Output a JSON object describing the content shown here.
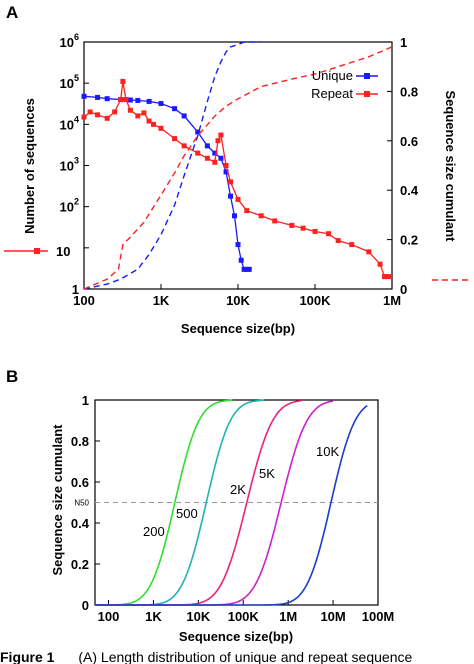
{
  "figure": {
    "caption_prefix": "Figure 1",
    "caption_text": "(A) Length distribution of unique and repeat sequence"
  },
  "chart_data": [
    {
      "panel": "A",
      "type": "line",
      "xlabel": "Sequence size(bp)",
      "ylabel": "Number of sequences",
      "ylabel_right": "Sequence size cumulant",
      "xscale": "log",
      "yscale": "log",
      "xlim": [
        100,
        1000000
      ],
      "ylim": [
        1,
        1000000
      ],
      "ylim_right": [
        0,
        1
      ],
      "x_ticks": [
        {
          "v": 100,
          "label": "100"
        },
        {
          "v": 1000,
          "label": "1K"
        },
        {
          "v": 10000,
          "label": "10K"
        },
        {
          "v": 100000,
          "label": "100K"
        },
        {
          "v": 1000000,
          "label": "1M"
        }
      ],
      "y_ticks": [
        {
          "v": 1,
          "base": "1",
          "exp": ""
        },
        {
          "v": 10,
          "base": "10",
          "exp": ""
        },
        {
          "v": 100,
          "base": "10",
          "exp": "2"
        },
        {
          "v": 1000,
          "base": "10",
          "exp": "3"
        },
        {
          "v": 10000,
          "base": "10",
          "exp": "4"
        },
        {
          "v": 100000,
          "base": "10",
          "exp": "5"
        },
        {
          "v": 1000000,
          "base": "10",
          "exp": "6"
        }
      ],
      "y_right_ticks": [
        {
          "v": 0,
          "label": "0"
        },
        {
          "v": 0.2,
          "label": "0.2"
        },
        {
          "v": 0.4,
          "label": "0.4"
        },
        {
          "v": 0.6,
          "label": "0.6"
        },
        {
          "v": 0.8,
          "label": "0.8"
        },
        {
          "v": 1,
          "label": "1"
        }
      ],
      "legend": {
        "position": "top-right",
        "entries": [
          "Unique",
          "Repeat"
        ]
      },
      "series": [
        {
          "name": "Unique",
          "color": "#1a1aff",
          "style": "solid-markers",
          "axis": "left",
          "x": [
            100,
            150,
            200,
            300,
            400,
            500,
            700,
            1000,
            1500,
            2000,
            3000,
            4000,
            5000,
            6000,
            7000,
            8000,
            9000,
            10000,
            11000,
            12000,
            13000,
            14000
          ],
          "y": [
            48000,
            45000,
            42000,
            40000,
            39000,
            38000,
            36000,
            32000,
            24000,
            16000,
            6500,
            3000,
            2000,
            1500,
            700,
            180,
            60,
            12,
            5,
            3,
            3,
            3
          ]
        },
        {
          "name": "Repeat",
          "color": "#ff2020",
          "style": "solid-markers",
          "axis": "left",
          "x": [
            100,
            120,
            150,
            200,
            250,
            300,
            320,
            350,
            400,
            500,
            600,
            700,
            800,
            1000,
            1500,
            2000,
            3000,
            4000,
            5000,
            5500,
            6000,
            7000,
            8000,
            10000,
            13000,
            20000,
            30000,
            50000,
            70000,
            100000,
            150000,
            200000,
            300000,
            500000,
            700000,
            800000,
            900000
          ],
          "y": [
            15000,
            20000,
            17000,
            14000,
            20000,
            40000,
            110000,
            40000,
            22000,
            16000,
            19000,
            12000,
            10000,
            8000,
            4500,
            3000,
            2000,
            1500,
            1200,
            4000,
            5500,
            1000,
            400,
            150,
            80,
            60,
            45,
            35,
            30,
            25,
            22,
            15,
            12,
            8,
            4,
            2,
            2
          ]
        },
        {
          "name": "",
          "color": "#1a1aff",
          "style": "dashed",
          "axis": "right",
          "x": [
            100,
            200,
            300,
            500,
            700,
            1000,
            1500,
            2000,
            3000,
            4000,
            5000,
            6000,
            7000,
            8000,
            10000,
            12000,
            15000,
            20000
          ],
          "y": [
            0,
            0.02,
            0.04,
            0.08,
            0.14,
            0.22,
            0.34,
            0.46,
            0.62,
            0.76,
            0.86,
            0.92,
            0.96,
            0.98,
            0.99,
            1,
            1,
            1
          ]
        },
        {
          "name": "",
          "color": "#ff2020",
          "style": "dashed",
          "axis": "right",
          "x": [
            100,
            200,
            280,
            320,
            400,
            600,
            1000,
            1500,
            2000,
            3000,
            5000,
            7000,
            10000,
            20000,
            50000,
            100000,
            200000,
            500000,
            1000000
          ],
          "y": [
            0,
            0.04,
            0.08,
            0.18,
            0.21,
            0.27,
            0.38,
            0.47,
            0.54,
            0.62,
            0.7,
            0.74,
            0.77,
            0.82,
            0.85,
            0.87,
            0.9,
            0.94,
            0.98
          ]
        }
      ],
      "side_markers": {
        "left": "10"
      }
    },
    {
      "panel": "B",
      "type": "line",
      "xlabel": "Sequence size(bp)",
      "ylabel": "Sequence size cumulant",
      "xscale": "log",
      "xlim": [
        50,
        100000000
      ],
      "ylim": [
        0,
        1
      ],
      "x_ticks": [
        {
          "v": 100,
          "label": "100"
        },
        {
          "v": 1000,
          "label": "1K"
        },
        {
          "v": 10000,
          "label": "10K"
        },
        {
          "v": 100000,
          "label": "100K"
        },
        {
          "v": 1000000,
          "label": "1M"
        },
        {
          "v": 10000000,
          "label": "10M"
        },
        {
          "v": 100000000,
          "label": "100M"
        }
      ],
      "y_ticks": [
        {
          "v": 0,
          "label": "0"
        },
        {
          "v": 0.2,
          "label": "0.2"
        },
        {
          "v": 0.4,
          "label": "0.4"
        },
        {
          "v": 0.5,
          "label": "N50"
        },
        {
          "v": 0.6,
          "label": "0.6"
        },
        {
          "v": 0.8,
          "label": "0.8"
        },
        {
          "v": 1,
          "label": "1"
        }
      ],
      "reference_line": {
        "y": 0.5,
        "style": "dashed",
        "color": "#999999"
      },
      "series": [
        {
          "name": "200",
          "color": "#33dd33",
          "median": 3000,
          "width": 0.42,
          "max_x": 60000
        },
        {
          "name": "500",
          "color": "#22b2b2",
          "median": 15000,
          "width": 0.42,
          "max_x": 300000
        },
        {
          "name": "2K",
          "color": "#ee2277",
          "median": 120000,
          "width": 0.45,
          "max_x": 2000000
        },
        {
          "name": "5K",
          "color": "#cc22cc",
          "median": 700000,
          "width": 0.45,
          "max_x": 10000000
        },
        {
          "name": "10K",
          "color": "#1a3cd0",
          "median": 9000000,
          "width": 0.42,
          "max_x": 60000000
        }
      ]
    }
  ]
}
